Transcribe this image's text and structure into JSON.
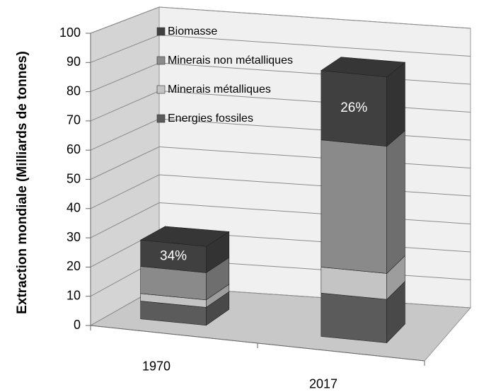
{
  "chart_data": {
    "type": "bar3d-stacked",
    "y_label": "Extraction mondiale (Milliards de tonnes)",
    "categories": [
      "1970",
      "2017"
    ],
    "series": [
      {
        "name": "Energies fossiles",
        "color": "#5b5b5b",
        "values": [
          6.2,
          15
        ]
      },
      {
        "name": "Minerais métalliques",
        "color": "#c4c4c4",
        "values": [
          2.6,
          9
        ]
      },
      {
        "name": "Minerais non métalliques",
        "color": "#8a8a8a",
        "values": [
          9.4,
          44
        ]
      },
      {
        "name": "Biomasse",
        "color": "#404040",
        "values": [
          9.1,
          24
        ]
      }
    ],
    "annotations": [
      "34%",
      "26%"
    ],
    "ylim": [
      0,
      100
    ],
    "yticks": [
      0,
      10,
      20,
      30,
      40,
      50,
      60,
      70,
      80,
      90,
      100
    ],
    "grid": true
  }
}
